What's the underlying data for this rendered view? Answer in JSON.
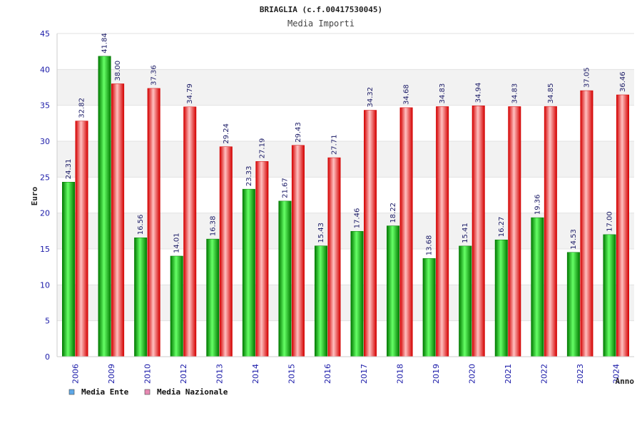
{
  "chart_data": {
    "type": "bar",
    "title": "BRIAGLIA (c.f.00417530045)",
    "subtitle": "Media Importi",
    "xlabel": "Anno",
    "ylabel": "Euro",
    "ylim": [
      0,
      45
    ],
    "yticks": [
      "0",
      "5",
      "10",
      "15",
      "20",
      "25",
      "30",
      "35",
      "40",
      "45"
    ],
    "categories": [
      "2006",
      "2009",
      "2010",
      "2012",
      "2013",
      "2014",
      "2015",
      "2016",
      "2017",
      "2018",
      "2019",
      "2020",
      "2021",
      "2022",
      "2023",
      "2024"
    ],
    "series": [
      {
        "name": "Media Ente",
        "values": [
          24.31,
          41.84,
          16.56,
          14.01,
          16.38,
          23.33,
          21.67,
          15.43,
          17.46,
          18.22,
          13.68,
          15.41,
          16.27,
          19.36,
          14.53,
          17.0
        ],
        "labels": [
          "24.31",
          "41.84",
          "16.56",
          "14.01",
          "16.38",
          "23.33",
          "21.67",
          "15.43",
          "17.46",
          "18.22",
          "13.68",
          "15.41",
          "16.27",
          "19.36",
          "14.53",
          "17.00"
        ]
      },
      {
        "name": "Media Nazionale",
        "values": [
          32.82,
          38.0,
          37.36,
          34.79,
          29.24,
          27.19,
          29.43,
          27.71,
          34.32,
          34.68,
          34.83,
          34.94,
          34.83,
          34.85,
          37.05,
          36.46
        ],
        "labels": [
          "32.82",
          "38.00",
          "37.36",
          "34.79",
          "29.24",
          "27.19",
          "29.43",
          "27.71",
          "34.32",
          "34.68",
          "34.83",
          "34.94",
          "34.83",
          "34.85",
          "37.05",
          "36.46"
        ]
      }
    ],
    "legend": {
      "position": "bottom-left",
      "items": [
        {
          "label": "Media Ente",
          "color": "#5fa8e8"
        },
        {
          "label": "Media Nazionale",
          "color": "#e889b3"
        }
      ]
    },
    "grid": true
  },
  "colors": {
    "ente_dark": "#007a00",
    "ente_light": "#66ff66",
    "naz_dark": "#d40000",
    "naz_light": "#ffc0c0",
    "axis_text": "#1a1aa8",
    "band": "#f2f2f2"
  }
}
